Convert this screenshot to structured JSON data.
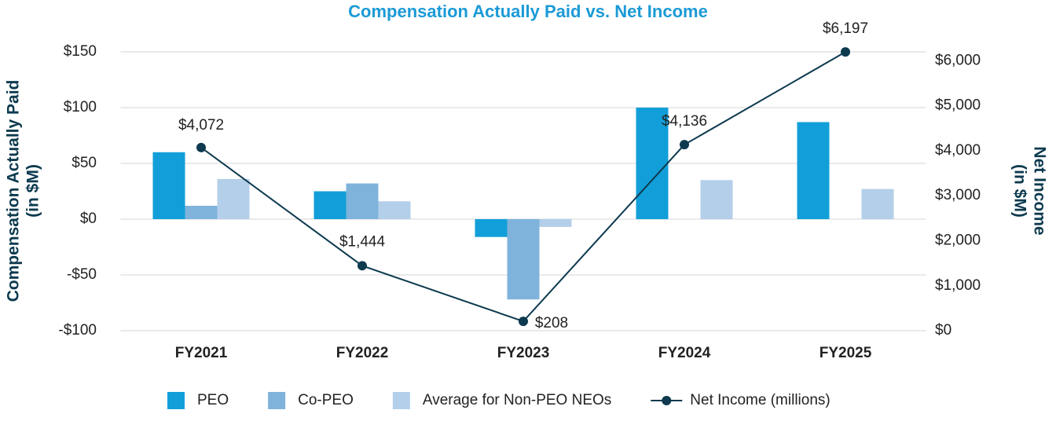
{
  "chart_data": {
    "type": "bar",
    "title": "Compensation Actually Paid vs. Net Income",
    "y_label": "Compensation Actually Paid (in $M)",
    "y2_label": "Net Income (in $M)",
    "categories": [
      "FY2021",
      "FY2022",
      "FY2023",
      "FY2024",
      "FY2025"
    ],
    "series": [
      {
        "name": "PEO",
        "type": "bar",
        "color": "#129fd9",
        "values": [
          60,
          25,
          -16,
          100,
          87
        ]
      },
      {
        "name": "Co-PEO",
        "type": "bar",
        "color": "#7fb3db",
        "values": [
          12,
          32,
          -72,
          null,
          null
        ]
      },
      {
        "name": "Average for Non-PEO NEOs",
        "type": "bar",
        "color": "#b3cfea",
        "values": [
          36,
          16,
          -7,
          35,
          27
        ]
      },
      {
        "name": "Net Income (millions)",
        "type": "line",
        "axis": "y2",
        "color": "#0d3a4f",
        "values": [
          4072,
          1444,
          208,
          4136,
          6197
        ],
        "value_labels": [
          "$4,072",
          "$1,444",
          "$208",
          "$4,136",
          "$6,197"
        ]
      }
    ],
    "ylim": [
      -100,
      150
    ],
    "yticks": [
      {
        "value": -100,
        "label": "-$100"
      },
      {
        "value": -50,
        "label": "-$50"
      },
      {
        "value": 0,
        "label": "$0"
      },
      {
        "value": 50,
        "label": "$50"
      },
      {
        "value": 100,
        "label": "$100"
      },
      {
        "value": 150,
        "label": "$150"
      }
    ],
    "y2lim": [
      0,
      6200
    ],
    "y2ticks": [
      {
        "value": 0,
        "label": "$0"
      },
      {
        "value": 1000,
        "label": "$1,000"
      },
      {
        "value": 2000,
        "label": "$2,000"
      },
      {
        "value": 3000,
        "label": "$3,000"
      },
      {
        "value": 4000,
        "label": "$4,000"
      },
      {
        "value": 5000,
        "label": "$5,000"
      },
      {
        "value": 6000,
        "label": "$6,000"
      }
    ],
    "grid": true,
    "legend": "bottom"
  }
}
